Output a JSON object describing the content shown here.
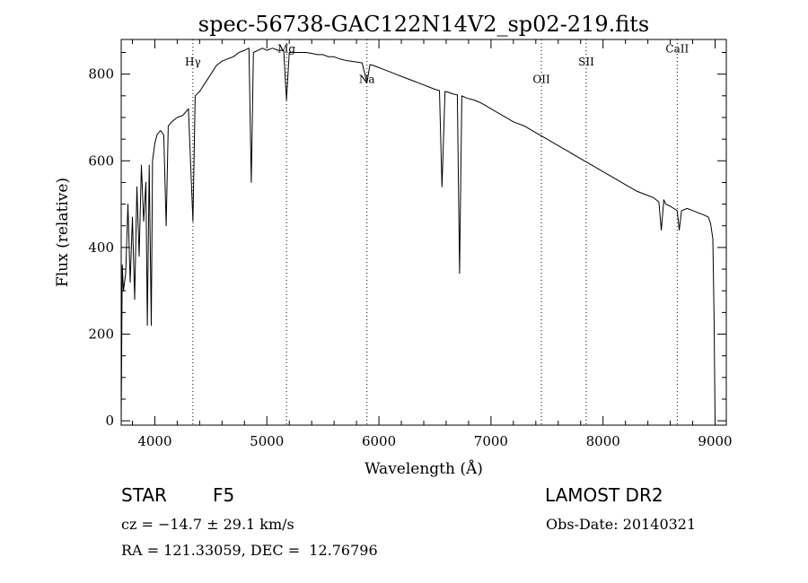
{
  "chart_data": {
    "type": "line",
    "title": "spec-56738-GAC122N14V2_sp02-219.fits",
    "xlabel": "Wavelength (Å)",
    "ylabel": "Flux (relative)",
    "xlim": [
      3700,
      9100
    ],
    "ylim": [
      -10,
      880
    ],
    "x_ticks": [
      4000,
      5000,
      6000,
      7000,
      8000,
      9000
    ],
    "y_ticks": [
      0,
      200,
      400,
      600,
      800
    ],
    "x_tick_labels": [
      "4000",
      "5000",
      "6000",
      "7000",
      "8000",
      "9000"
    ],
    "y_tick_labels": [
      "0",
      "200",
      "400",
      "600",
      "800"
    ],
    "grid": false,
    "lines": [
      {
        "label": "Hγ",
        "wavelength": 4340,
        "label_flux": 820
      },
      {
        "label": "Mg",
        "wavelength": 5175,
        "label_flux": 850
      },
      {
        "label": "Na",
        "wavelength": 5893,
        "label_flux": 780
      },
      {
        "label": "OII",
        "wavelength": 7450,
        "label_flux": 780
      },
      {
        "label": "SII",
        "wavelength": 7850,
        "label_flux": 820
      },
      {
        "label": "CaII",
        "wavelength": 8662,
        "label_flux": 850
      }
    ],
    "series": [
      {
        "name": "spectrum",
        "x": [
          3700,
          3710,
          3720,
          3740,
          3760,
          3780,
          3800,
          3820,
          3840,
          3860,
          3880,
          3900,
          3920,
          3933,
          3950,
          3968,
          3980,
          4000,
          4020,
          4050,
          4080,
          4101,
          4120,
          4150,
          4200,
          4250,
          4300,
          4340,
          4360,
          4400,
          4450,
          4500,
          4550,
          4600,
          4650,
          4700,
          4750,
          4800,
          4840,
          4861,
          4880,
          4920,
          4960,
          5000,
          5050,
          5100,
          5150,
          5175,
          5200,
          5250,
          5300,
          5350,
          5400,
          5450,
          5500,
          5550,
          5600,
          5650,
          5700,
          5750,
          5800,
          5850,
          5893,
          5920,
          5950,
          6000,
          6050,
          6100,
          6150,
          6200,
          6250,
          6300,
          6350,
          6400,
          6450,
          6500,
          6540,
          6563,
          6590,
          6620,
          6650,
          6700,
          6720,
          6740,
          6780,
          6850,
          6900,
          6950,
          7000,
          7100,
          7200,
          7300,
          7400,
          7500,
          7600,
          7700,
          7800,
          7900,
          8000,
          8100,
          8200,
          8300,
          8400,
          8450,
          8498,
          8520,
          8542,
          8560,
          8600,
          8662,
          8680,
          8700,
          8750,
          8800,
          8850,
          8900,
          8940,
          8960,
          8980,
          8990,
          9000
        ],
        "y": [
          0,
          360,
          300,
          340,
          500,
          320,
          470,
          280,
          540,
          380,
          590,
          460,
          550,
          220,
          590,
          220,
          600,
          640,
          660,
          670,
          660,
          450,
          680,
          690,
          700,
          705,
          720,
          460,
          750,
          760,
          780,
          800,
          820,
          830,
          835,
          840,
          850,
          855,
          860,
          550,
          850,
          855,
          860,
          855,
          860,
          855,
          855,
          740,
          850,
          850,
          850,
          850,
          848,
          845,
          845,
          840,
          840,
          835,
          832,
          830,
          828,
          826,
          780,
          822,
          820,
          815,
          810,
          805,
          800,
          795,
          790,
          785,
          780,
          775,
          770,
          765,
          762,
          540,
          760,
          758,
          755,
          752,
          340,
          750,
          745,
          740,
          735,
          728,
          720,
          705,
          690,
          680,
          665,
          650,
          635,
          620,
          605,
          590,
          575,
          560,
          545,
          530,
          520,
          515,
          505,
          440,
          510,
          500,
          495,
          485,
          440,
          485,
          490,
          485,
          480,
          475,
          470,
          455,
          420,
          250,
          0
        ]
      }
    ]
  },
  "footer": {
    "object": "STAR",
    "subclass": "F5",
    "survey": "LAMOST DR2",
    "redshift": "cz = −14.7 ± 29.1 km/s",
    "obs_date": "Obs-Date: 20140321",
    "coords": "RA = 121.33059, DEC =  12.76796"
  }
}
